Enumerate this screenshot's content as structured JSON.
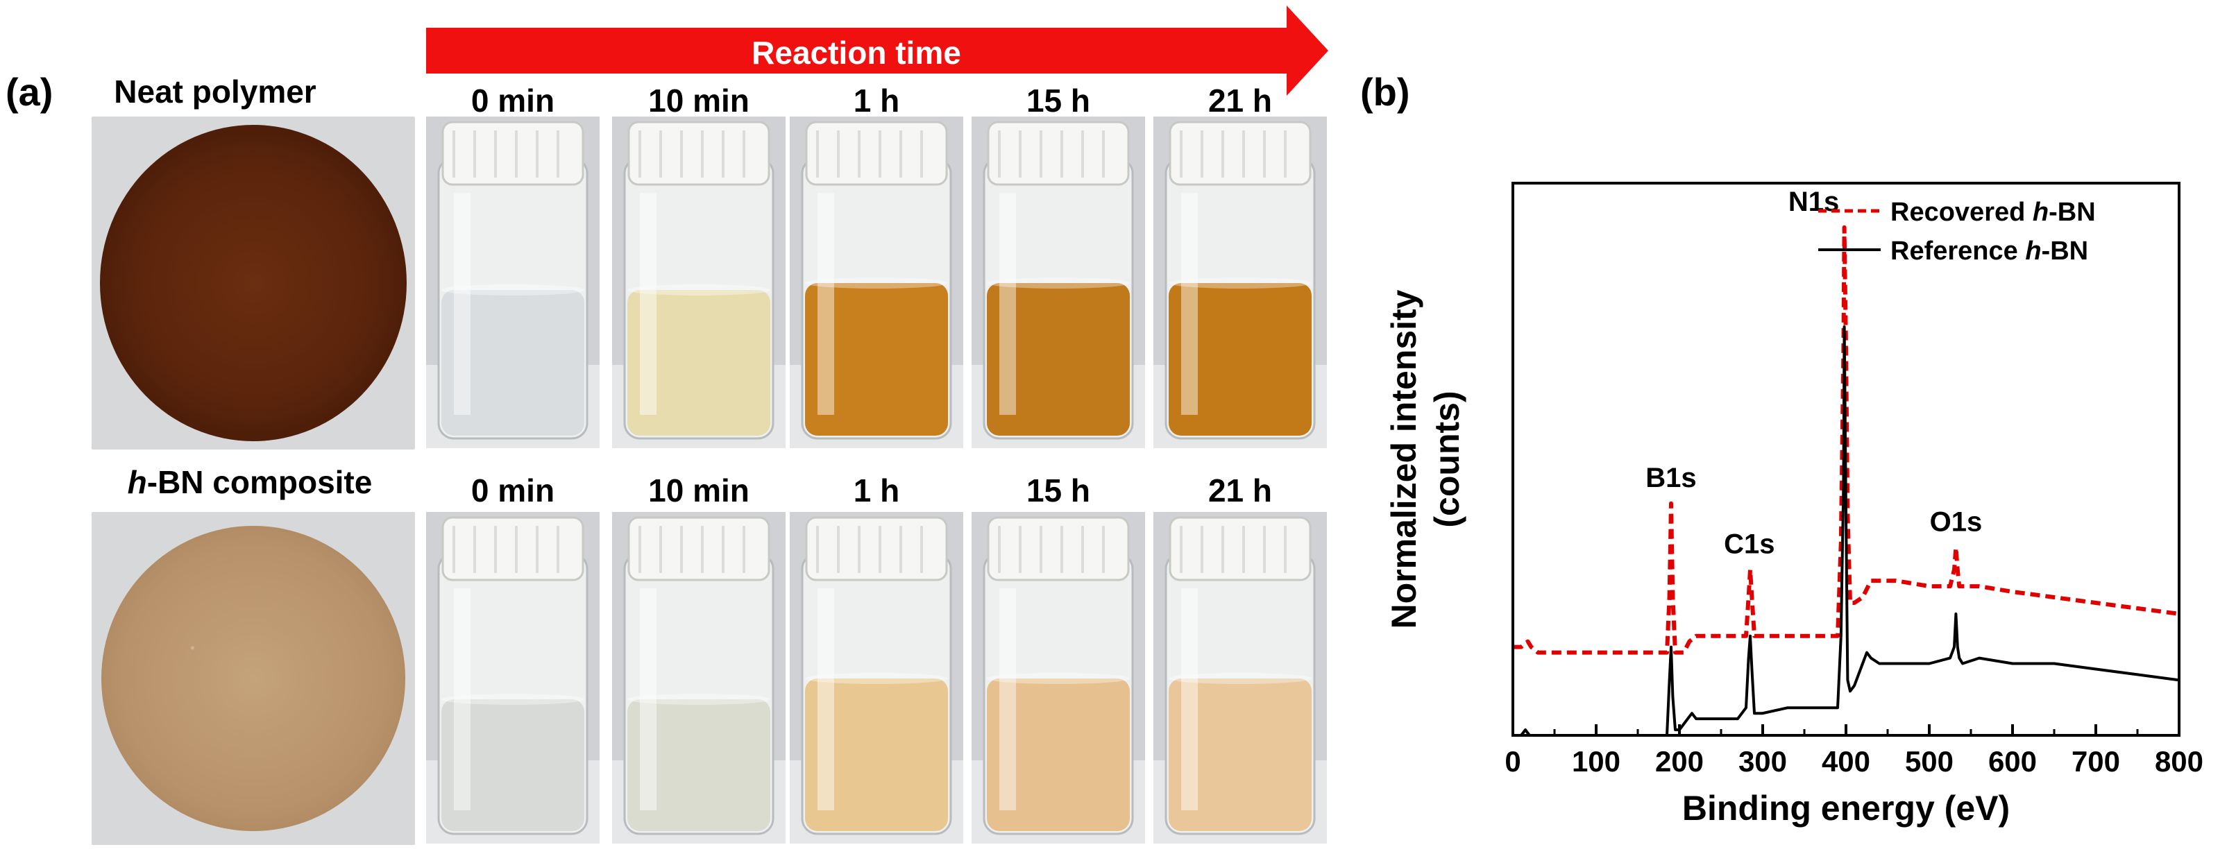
{
  "panel_a": {
    "label": "(a)",
    "arrow_label": "Reaction time",
    "rows": [
      {
        "title_prefix": "",
        "title_italic": "",
        "title_suffix": "Neat polymer",
        "disk": "neat",
        "times": [
          "0 min",
          "10 min",
          "1 h",
          "15 h",
          "21 h"
        ],
        "liquid_colors": [
          "#d9dde0",
          "#e6dcae",
          "#c8801e",
          "#c07a1c",
          "#c27a18"
        ]
      },
      {
        "title_prefix": "",
        "title_italic": "h",
        "title_suffix": "-BN composite",
        "disk": "bn",
        "times": [
          "0 min",
          "10 min",
          "1 h",
          "15 h",
          "21 h"
        ],
        "liquid_colors": [
          "#d8dad8",
          "#dadcd0",
          "#e8c890",
          "#e6c08e",
          "#e9c79a"
        ]
      }
    ]
  },
  "panel_b": {
    "label": "(b)"
  },
  "chart_data": {
    "type": "line",
    "title": "",
    "xlabel": "Binding energy (eV)",
    "ylabel_line1": "Normalized intensity",
    "ylabel_line2": "(counts)",
    "xlim": [
      0,
      800
    ],
    "ylim": [
      0,
      1.0
    ],
    "xticks": [
      0,
      100,
      200,
      300,
      400,
      500,
      600,
      700,
      800
    ],
    "legend": {
      "position": "top-right",
      "entries": [
        {
          "name_prefix": "Recovered ",
          "name_italic": "h",
          "name_suffix": "-BN",
          "style": "dashed",
          "color": "#e00000"
        },
        {
          "name_prefix": "Reference ",
          "name_italic": "h",
          "name_suffix": "-BN",
          "style": "solid",
          "color": "#000000"
        }
      ]
    },
    "annotations": [
      {
        "text": "B1s",
        "x": 190,
        "y": 0.45
      },
      {
        "text": "C1s",
        "x": 284,
        "y": 0.33
      },
      {
        "text": "N1s",
        "x": 398,
        "y": 0.95
      },
      {
        "text": "O1s",
        "x": 532,
        "y": 0.37
      }
    ],
    "series": [
      {
        "name": "Recovered h-BN",
        "style": "dashed",
        "color": "#e00000",
        "x": [
          0,
          10,
          18,
          22,
          30,
          60,
          100,
          150,
          185,
          188,
          190,
          192,
          195,
          205,
          212,
          220,
          240,
          270,
          280,
          283,
          285,
          287,
          290,
          300,
          330,
          370,
          390,
          394,
          397,
          398,
          400,
          402,
          405,
          410,
          420,
          430,
          440,
          460,
          500,
          525,
          530,
          532,
          534,
          536,
          540,
          560,
          600,
          650,
          700,
          750,
          800
        ],
        "y": [
          0.16,
          0.16,
          0.17,
          0.16,
          0.15,
          0.15,
          0.15,
          0.15,
          0.15,
          0.25,
          0.42,
          0.25,
          0.15,
          0.15,
          0.17,
          0.18,
          0.18,
          0.18,
          0.18,
          0.25,
          0.3,
          0.25,
          0.18,
          0.18,
          0.18,
          0.18,
          0.18,
          0.35,
          0.7,
          0.92,
          0.7,
          0.4,
          0.24,
          0.24,
          0.25,
          0.28,
          0.28,
          0.28,
          0.27,
          0.27,
          0.3,
          0.34,
          0.3,
          0.27,
          0.27,
          0.27,
          0.26,
          0.25,
          0.24,
          0.23,
          0.22
        ]
      },
      {
        "name": "Reference h-BN",
        "style": "solid",
        "color": "#000000",
        "x": [
          0,
          10,
          15,
          20,
          30,
          60,
          100,
          150,
          185,
          188,
          190,
          192,
          195,
          200,
          210,
          215,
          220,
          240,
          270,
          280,
          283,
          285,
          287,
          290,
          300,
          330,
          370,
          390,
          394,
          397,
          398,
          400,
          402,
          405,
          410,
          420,
          425,
          430,
          440,
          460,
          500,
          525,
          530,
          532,
          534,
          536,
          540,
          560,
          600,
          650,
          700,
          750,
          800
        ],
        "y": [
          0.0,
          0.0,
          0.01,
          0.0,
          0.0,
          0.0,
          0.0,
          0.0,
          0.0,
          0.1,
          0.16,
          0.07,
          0.01,
          0.01,
          0.03,
          0.04,
          0.03,
          0.03,
          0.03,
          0.05,
          0.14,
          0.18,
          0.12,
          0.04,
          0.04,
          0.05,
          0.05,
          0.05,
          0.18,
          0.45,
          0.74,
          0.4,
          0.1,
          0.08,
          0.09,
          0.13,
          0.15,
          0.14,
          0.13,
          0.13,
          0.13,
          0.14,
          0.16,
          0.22,
          0.16,
          0.14,
          0.13,
          0.14,
          0.13,
          0.13,
          0.12,
          0.11,
          0.1
        ]
      }
    ]
  }
}
